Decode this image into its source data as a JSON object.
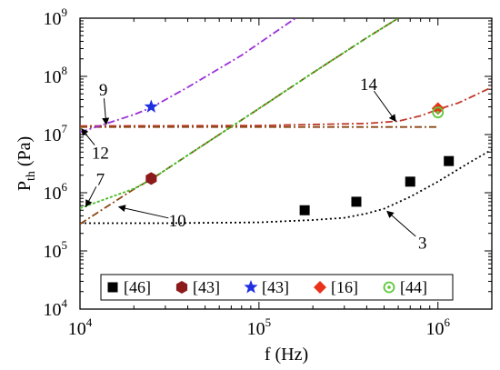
{
  "chart_data": {
    "type": "line",
    "title": "",
    "xlabel": "f (Hz)",
    "ylabel_main": "P",
    "ylabel_sub": "th",
    "ylabel_unit": " (Pa)",
    "x_scale": "log",
    "y_scale": "log",
    "xlim": [
      10000,
      2000000
    ],
    "ylim": [
      10000,
      1000000000
    ],
    "x_ticks": [
      {
        "value": 10000,
        "base": "10",
        "exp": "4"
      },
      {
        "value": 100000,
        "base": "10",
        "exp": "5"
      },
      {
        "value": 1000000,
        "base": "10",
        "exp": "6"
      }
    ],
    "y_ticks": [
      {
        "value": 10000,
        "base": "10",
        "exp": "4"
      },
      {
        "value": 100000,
        "base": "10",
        "exp": "5"
      },
      {
        "value": 1000000,
        "base": "10",
        "exp": "6"
      },
      {
        "value": 10000000,
        "base": "10",
        "exp": "7"
      },
      {
        "value": 100000000,
        "base": "10",
        "exp": "8"
      },
      {
        "value": 1000000000,
        "base": "10",
        "exp": "9"
      }
    ],
    "grid": false,
    "legend_position": "bottom",
    "curves": [
      {
        "label": "3",
        "color": "#000000",
        "dash": "2,3",
        "points": [
          [
            10000,
            300000
          ],
          [
            30000,
            300000
          ],
          [
            100000,
            310000
          ],
          [
            200000,
            340000
          ],
          [
            300000,
            370000
          ],
          [
            400000,
            440000
          ],
          [
            500000,
            530000
          ],
          [
            700000,
            850000
          ],
          [
            1000000,
            1550000
          ],
          [
            1500000,
            3300000
          ],
          [
            2000000,
            5500000
          ]
        ]
      },
      {
        "label": "14",
        "color": "#c0392b",
        "dash": "8,3,2,3",
        "points": [
          [
            10000,
            14000000
          ],
          [
            100000,
            14300000
          ],
          [
            400000,
            15500000
          ],
          [
            600000,
            17000000
          ],
          [
            800000,
            21000000
          ],
          [
            1000000,
            27000000
          ],
          [
            1300000,
            35000000
          ],
          [
            1600000,
            47000000
          ],
          [
            2000000,
            65000000
          ]
        ]
      },
      {
        "label": "12",
        "color": "#8b4513",
        "dash": "8,3,2,3",
        "points": [
          [
            10000,
            13500000
          ],
          [
            100000,
            13500000
          ],
          [
            1000000,
            13500000
          ]
        ]
      },
      {
        "label": "9",
        "color": "#9b30d9",
        "dash": "8,3,2,3",
        "points": [
          [
            10000,
            11000000
          ],
          [
            20000,
            22000000
          ],
          [
            25000,
            29000000
          ],
          [
            40000,
            65000000
          ],
          [
            80000,
            230000000
          ],
          [
            160000,
            1000000000
          ]
        ]
      },
      {
        "label": "10",
        "color": "#8b4513",
        "dash": "8,3,2,3",
        "points": [
          [
            10000,
            290000
          ],
          [
            20000,
            1150000
          ],
          [
            25000,
            1700000
          ],
          [
            40000,
            4400000
          ],
          [
            100000,
            28000000
          ],
          [
            200000,
            115000000
          ],
          [
            400000,
            460000000
          ],
          [
            600000,
            1000000000
          ]
        ]
      },
      {
        "label": "7",
        "color": "#44bb22",
        "dash": "3,2",
        "points": [
          [
            10000,
            540000
          ],
          [
            20000,
            1170000
          ],
          [
            25000,
            1700000
          ],
          [
            40000,
            4400000
          ],
          [
            100000,
            28000000
          ],
          [
            200000,
            115000000
          ],
          [
            400000,
            460000000
          ],
          [
            600000,
            1000000000
          ]
        ]
      }
    ],
    "annotations": [
      {
        "text": "9",
        "label_x": 13500,
        "label_y": 60000000,
        "arrow_to_x": 14000,
        "arrow_to_y": 15000000
      },
      {
        "text": "12",
        "label_x": 13000,
        "label_y": 5000000,
        "arrow_to_x": 10200,
        "arrow_to_y": 12500000
      },
      {
        "text": "7",
        "label_x": 13000,
        "label_y": 1750000,
        "arrow_to_x": 10800,
        "arrow_to_y": 580000
      },
      {
        "text": "10",
        "label_x": 35000,
        "label_y": 340000,
        "arrow_to_x": 16500,
        "arrow_to_y": 570000
      },
      {
        "text": "14",
        "label_x": 410000,
        "label_y": 75000000,
        "arrow_to_x": 580000,
        "arrow_to_y": 17000000
      },
      {
        "text": "3",
        "label_x": 820000,
        "label_y": 140000,
        "arrow_to_x": 520000,
        "arrow_to_y": 480000
      }
    ],
    "series": [
      {
        "name": "[46]",
        "marker": "square",
        "color": "#000000",
        "x": [
          180000,
          350000,
          700000,
          1150000
        ],
        "y": [
          500000,
          700000,
          1550000,
          3500000
        ]
      },
      {
        "name": "[43]",
        "marker": "hexagon",
        "color": "#8b1a1a",
        "x": [
          25000
        ],
        "y": [
          1750000
        ]
      },
      {
        "name": "[43]",
        "marker": "star",
        "color": "#1f2fe0",
        "x": [
          25000
        ],
        "y": [
          30000000
        ]
      },
      {
        "name": "[16]",
        "marker": "diamond",
        "color": "#e8321a",
        "x": [
          1000000
        ],
        "y": [
          28000000
        ]
      },
      {
        "name": "[44]",
        "marker": "circle-dot",
        "color": "#5dc83a",
        "x": [
          1000000
        ],
        "y": [
          24000000
        ]
      }
    ]
  }
}
